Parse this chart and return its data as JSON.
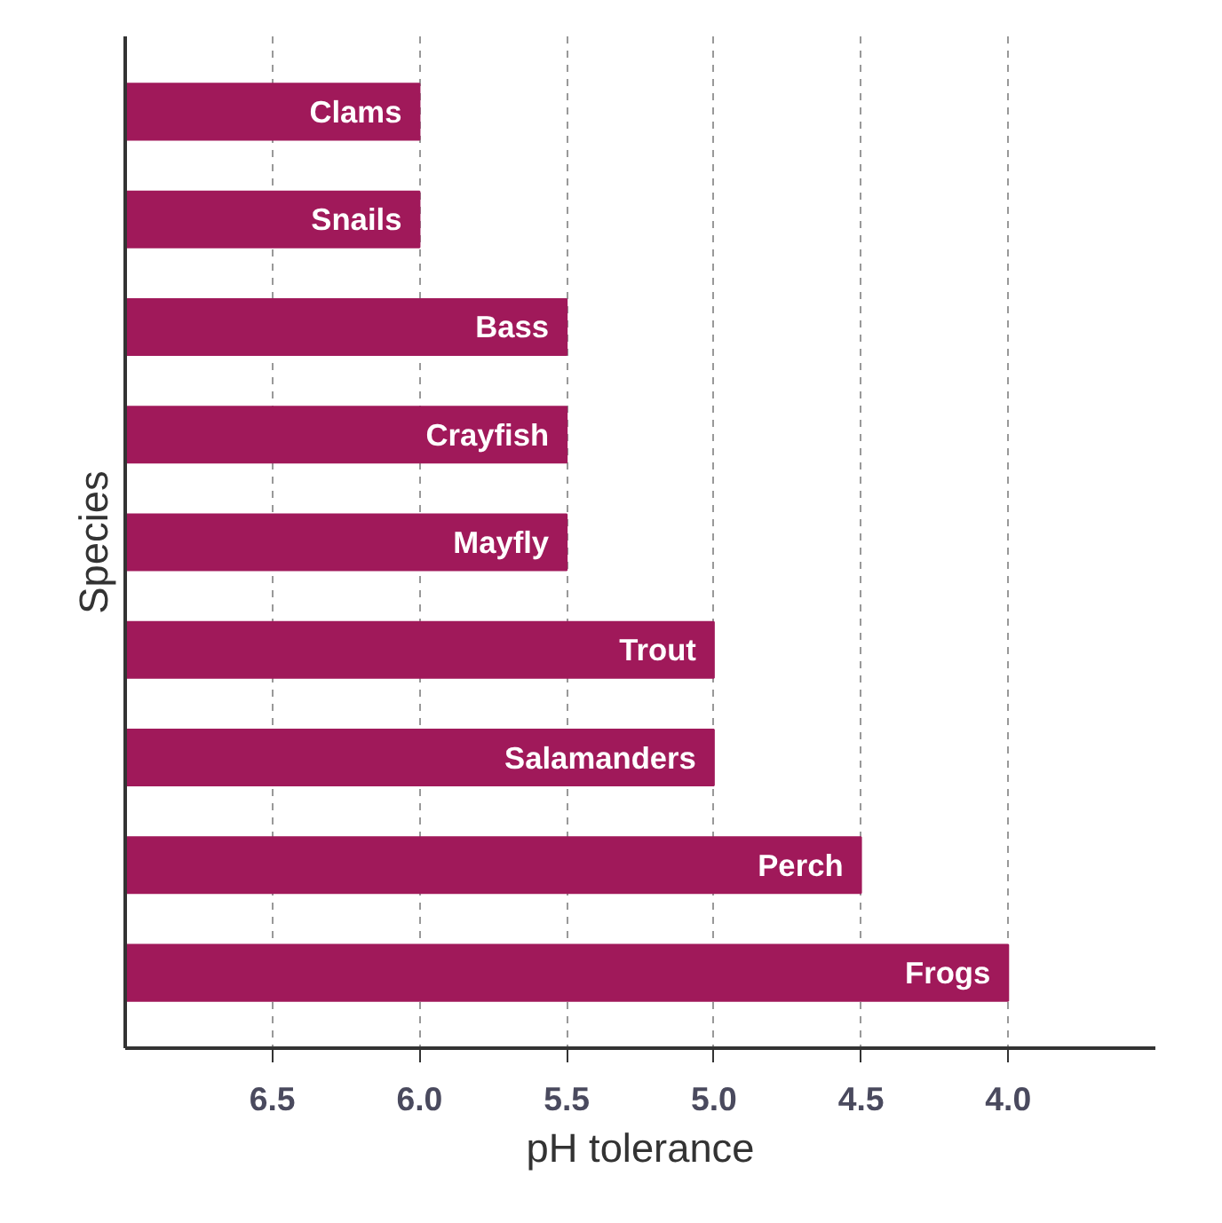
{
  "chart_data": {
    "type": "bar",
    "orientation": "horizontal",
    "xlabel": "pH tolerance",
    "ylabel": "Species",
    "categories": [
      "Clams",
      "Snails",
      "Bass",
      "Crayfish",
      "Mayfly",
      "Trout",
      "Salamanders",
      "Perch",
      "Frogs"
    ],
    "base": [
      7.0,
      7.0,
      7.0,
      7.0,
      7.0,
      7.0,
      7.0,
      7.0,
      7.0
    ],
    "values": [
      -1.0,
      -1.0,
      -1.5,
      -1.5,
      -1.5,
      -2.0,
      -2.0,
      -2.5,
      -3.0
    ],
    "color": "#a0195a",
    "xlim": [
      7.0,
      3.5
    ],
    "xticks": [
      6.5,
      {
        "value": 6,
        "label": "6.0"
      },
      5.5,
      {
        "value": 5,
        "label": "5.0"
      },
      4.5,
      {
        "value": 4,
        "label": "4.0"
      }
    ],
    "grid": "x",
    "tick_labels": "x"
  }
}
